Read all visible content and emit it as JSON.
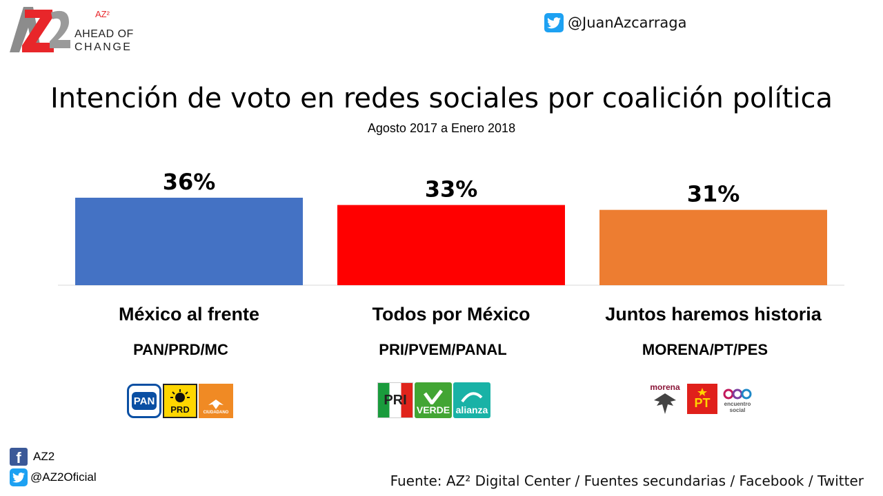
{
  "brand": {
    "mark": "AZ2",
    "superscript": "AZ²",
    "line1": "AHEAD OF",
    "line2": "CHANGE"
  },
  "twitter_top": {
    "handle": "@JuanAzcarraga",
    "icon": "twitter-icon"
  },
  "chart_data": {
    "type": "bar",
    "title": "Intención de voto en redes sociales por coalición política",
    "subtitle": "Agosto 2017 a Enero 2018",
    "categories": [
      "México al frente",
      "Todos por México",
      "Juntos haremos historia"
    ],
    "values": [
      36,
      33,
      31
    ],
    "value_labels": [
      "36%",
      "33%",
      "31%"
    ],
    "party_labels": [
      "PAN/PRD/MC",
      "PRI/PVEM/PANAL",
      "MORENA/PT/PES"
    ],
    "colors": [
      "#4472c4",
      "#ff0000",
      "#ed7d31"
    ],
    "ylim": [
      0,
      36
    ],
    "grid": false,
    "legend": "none"
  },
  "party_logos": [
    {
      "names": [
        "PAN",
        "PRD",
        "CIUDADANO"
      ]
    },
    {
      "names": [
        "PRI",
        "VERDE",
        "alianza"
      ]
    },
    {
      "names": [
        "morena",
        "PT",
        "encuentro social"
      ]
    }
  ],
  "footer": {
    "facebook": {
      "icon": "facebook-icon",
      "text": "AZ2"
    },
    "twitter": {
      "icon": "twitter-icon",
      "text": "@AZ2Oficial"
    },
    "source": "Fuente: AZ² Digital Center / Fuentes secundarias / Facebook / Twitter"
  }
}
